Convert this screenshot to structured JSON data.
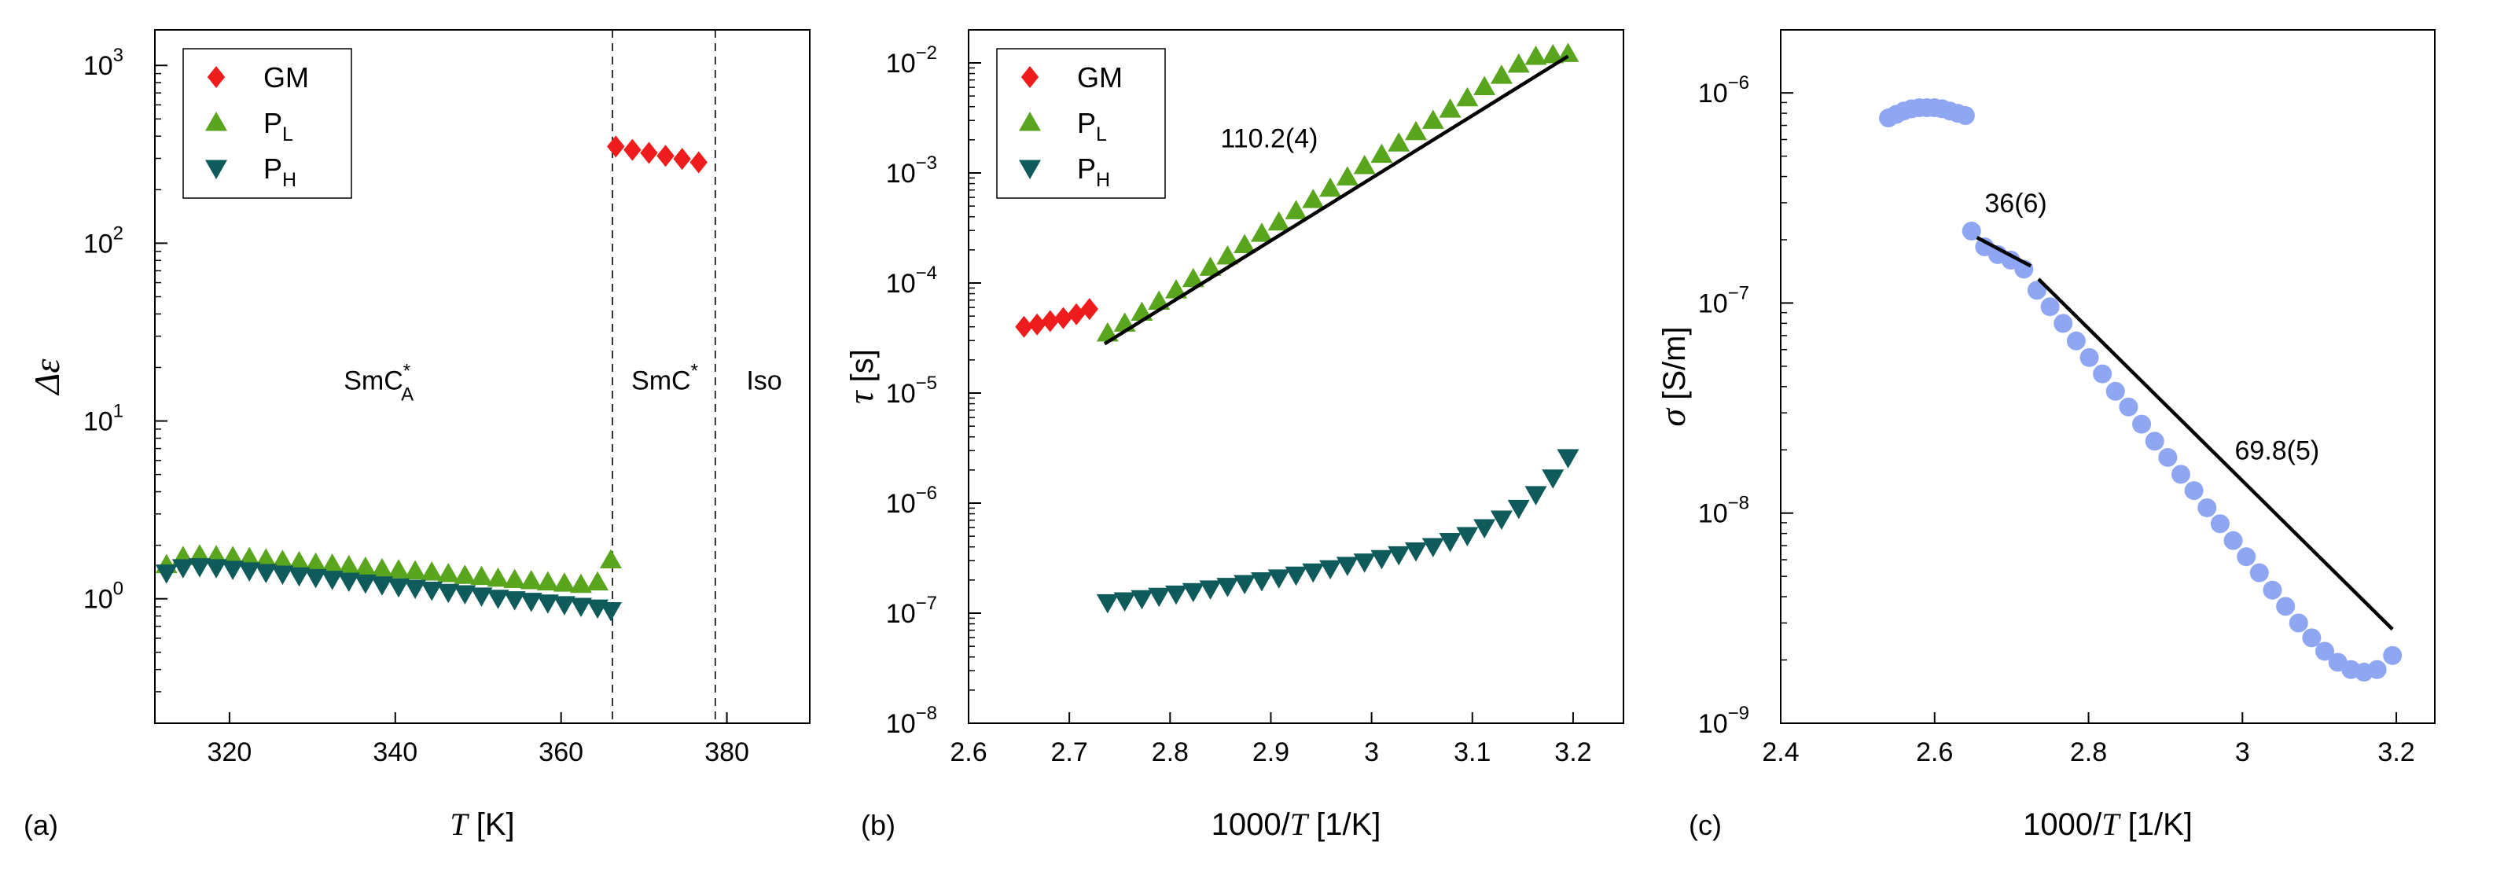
{
  "colors": {
    "GM": "#ee1c1c",
    "PL": "#5aa51e",
    "PH": "#0f5a5a",
    "sigma": "#8fa6f2",
    "fit": "#000000"
  },
  "legend": {
    "entries": [
      {
        "key": "GM",
        "text": "GM",
        "sub": ""
      },
      {
        "key": "PL",
        "text": "P",
        "sub": "L"
      },
      {
        "key": "PH",
        "text": "P",
        "sub": "H"
      }
    ]
  },
  "chart_data": [
    {
      "type": "scatter",
      "panel_label": "(a)",
      "xlabel": {
        "var": "T",
        "unit": " [K]"
      },
      "ylabel": "Δε",
      "xlim": [
        311,
        390
      ],
      "ylim_log10": [
        -0.7,
        3.2
      ],
      "xticks": [
        320,
        340,
        360,
        380
      ],
      "yticks": [
        {
          "base": "10",
          "exp": "0",
          "v": 0
        },
        {
          "base": "10",
          "exp": "1",
          "v": 1
        },
        {
          "base": "10",
          "exp": "2",
          "v": 2
        },
        {
          "base": "10",
          "exp": "3",
          "v": 3
        }
      ],
      "y_scale": "log",
      "legend_placement": "top-left",
      "vlines": [
        366.2,
        378.6
      ],
      "phase_labels": [
        {
          "text": "SmC",
          "sup": "*",
          "sub": "A",
          "x": 338,
          "y": 17
        },
        {
          "text": "SmC",
          "sup": "*",
          "sub": "",
          "x": 372.5,
          "y": 17
        },
        {
          "text": "Iso",
          "sup": "",
          "sub": "",
          "x": 384.5,
          "y": 17
        }
      ],
      "series": [
        {
          "name": "GM",
          "key": "GM",
          "marker": "diamond",
          "x": [
            366.6,
            368.6,
            370.6,
            372.6,
            374.6,
            376.6
          ],
          "y": [
            350,
            335,
            322,
            310,
            298,
            285
          ]
        },
        {
          "name": "PL",
          "key": "PL",
          "marker": "triangle-up",
          "x": [
            312.4,
            314.4,
            316.4,
            318.4,
            320.4,
            322.4,
            324.4,
            326.4,
            328.4,
            330.4,
            332.4,
            334.4,
            336.4,
            338.4,
            340.4,
            342.4,
            344.4,
            346.4,
            348.4,
            350.4,
            352.4,
            354.4,
            356.4,
            358.4,
            360.4,
            362.4,
            364.4,
            366.0
          ],
          "y": [
            1.55,
            1.72,
            1.76,
            1.74,
            1.72,
            1.7,
            1.67,
            1.64,
            1.61,
            1.58,
            1.56,
            1.53,
            1.5,
            1.47,
            1.45,
            1.43,
            1.41,
            1.38,
            1.35,
            1.33,
            1.3,
            1.28,
            1.26,
            1.24,
            1.22,
            1.2,
            1.24,
            1.65
          ]
        },
        {
          "name": "PH",
          "key": "PH",
          "marker": "triangle-down",
          "x": [
            312.4,
            314.4,
            316.4,
            318.4,
            320.4,
            322.4,
            324.4,
            326.4,
            328.4,
            330.4,
            332.4,
            334.4,
            336.4,
            338.4,
            340.4,
            342.4,
            344.4,
            346.4,
            348.4,
            350.4,
            352.4,
            354.4,
            356.4,
            358.4,
            360.4,
            362.4,
            364.4,
            366.0
          ],
          "y": [
            1.4,
            1.5,
            1.52,
            1.5,
            1.47,
            1.44,
            1.41,
            1.38,
            1.35,
            1.32,
            1.29,
            1.26,
            1.23,
            1.2,
            1.17,
            1.15,
            1.12,
            1.09,
            1.07,
            1.04,
            1.01,
            0.99,
            0.97,
            0.95,
            0.93,
            0.91,
            0.89,
            0.86
          ]
        }
      ]
    },
    {
      "type": "scatter",
      "panel_label": "(b)",
      "xlabel": {
        "var": "T",
        "pre": "1000/",
        "unit": " [1/K]"
      },
      "ylabel": {
        "var": "τ",
        "unit": " [s]"
      },
      "xlim": [
        2.6,
        3.25
      ],
      "ylim_log10": [
        -8,
        -1.7
      ],
      "xticks": [
        2.6,
        2.7,
        2.8,
        2.9,
        3,
        3.1,
        3.2
      ],
      "xtick_labels": [
        "2.6",
        "2.7",
        "2.8",
        "2.9",
        "3",
        "3.1",
        "3.2"
      ],
      "yticks": [
        {
          "base": "10",
          "exp": "−8",
          "v": -8
        },
        {
          "base": "10",
          "exp": "−7",
          "v": -7
        },
        {
          "base": "10",
          "exp": "−6",
          "v": -6
        },
        {
          "base": "10",
          "exp": "−5",
          "v": -5
        },
        {
          "base": "10",
          "exp": "−4",
          "v": -4
        },
        {
          "base": "10",
          "exp": "−3",
          "v": -3
        },
        {
          "base": "10",
          "exp": "−2",
          "v": -2
        }
      ],
      "y_scale": "log",
      "legend_placement": "top-left",
      "annotations": [
        {
          "text": "110.2(4)",
          "x": 2.85,
          "y": 0.0017
        }
      ],
      "fits": [
        {
          "x": [
            2.735,
            3.195
          ],
          "y": [
            2.8e-05,
            0.0115
          ]
        }
      ],
      "series": [
        {
          "name": "GM",
          "key": "GM",
          "marker": "diamond",
          "x": [
            2.655,
            2.668,
            2.681,
            2.694,
            2.707,
            2.72
          ],
          "y": [
            4e-05,
            4.2e-05,
            4.5e-05,
            4.8e-05,
            5.2e-05,
            5.8e-05
          ]
        },
        {
          "name": "PL",
          "key": "PL",
          "marker": "triangle-up",
          "x": [
            2.738,
            2.755,
            2.772,
            2.789,
            2.806,
            2.823,
            2.84,
            2.857,
            2.874,
            2.891,
            2.908,
            2.925,
            2.942,
            2.959,
            2.976,
            2.993,
            3.01,
            3.027,
            3.044,
            3.061,
            3.078,
            3.095,
            3.112,
            3.129,
            3.146,
            3.163,
            3.18,
            3.195
          ],
          "y": [
            3.5e-05,
            4.3e-05,
            5.4e-05,
            6.8e-05,
            8.6e-05,
            0.000109,
            0.000138,
            0.000175,
            0.000222,
            0.000281,
            0.000356,
            0.000451,
            0.000571,
            0.000723,
            0.000916,
            0.00116,
            0.00147,
            0.00186,
            0.00236,
            0.00299,
            0.00378,
            0.00479,
            0.00606,
            0.00767,
            0.0097,
            0.0114,
            0.0118,
            0.0121
          ]
        },
        {
          "name": "PH",
          "key": "PH",
          "marker": "triangle-down",
          "x": [
            2.738,
            2.755,
            2.772,
            2.789,
            2.806,
            2.823,
            2.84,
            2.857,
            2.874,
            2.891,
            2.908,
            2.925,
            2.942,
            2.959,
            2.976,
            2.993,
            3.01,
            3.027,
            3.044,
            3.061,
            3.078,
            3.095,
            3.112,
            3.129,
            3.146,
            3.163,
            3.18,
            3.195
          ],
          "y": [
            1.25e-07,
            1.3e-07,
            1.36e-07,
            1.43e-07,
            1.5e-07,
            1.58e-07,
            1.67e-07,
            1.76e-07,
            1.87e-07,
            1.98e-07,
            2.1e-07,
            2.23e-07,
            2.38e-07,
            2.55e-07,
            2.73e-07,
            2.93e-07,
            3.15e-07,
            3.41e-07,
            3.7e-07,
            4.05e-07,
            4.5e-07,
            5.1e-07,
            6e-07,
            7.2e-07,
            9e-07,
            1.2e-06,
            1.7e-06,
            2.6e-06
          ]
        }
      ]
    },
    {
      "type": "scatter",
      "panel_label": "(c)",
      "xlabel": {
        "var": "T",
        "pre": "1000/",
        "unit": " [1/K]"
      },
      "ylabel": {
        "var": "σ",
        "unit": " [S/m]"
      },
      "xlim": [
        2.4,
        3.25
      ],
      "ylim_log10": [
        -9,
        -5.7
      ],
      "xticks": [
        2.4,
        2.6,
        2.8,
        3,
        3.2
      ],
      "xtick_labels": [
        "2.4",
        "2.6",
        "2.8",
        "3",
        "3.2"
      ],
      "yticks": [
        {
          "base": "10",
          "exp": "−9",
          "v": -9
        },
        {
          "base": "10",
          "exp": "−8",
          "v": -8
        },
        {
          "base": "10",
          "exp": "−7",
          "v": -7
        },
        {
          "base": "10",
          "exp": "−6",
          "v": -6
        }
      ],
      "y_scale": "log",
      "annotations": [
        {
          "text": "36(6)",
          "x": 2.665,
          "y": 2.7e-07
        },
        {
          "text": "69.8(5)",
          "x": 2.99,
          "y": 1.8e-08
        }
      ],
      "fits": [
        {
          "x": [
            2.655,
            2.725
          ],
          "y": [
            2.05e-07,
            1.5e-07
          ]
        },
        {
          "x": [
            2.735,
            3.195
          ],
          "y": [
            1.3e-07,
            2.8e-09
          ]
        }
      ],
      "series": [
        {
          "name": "σ",
          "key": "sigma",
          "marker": "circle",
          "x": [
            2.54,
            2.55,
            2.56,
            2.57,
            2.58,
            2.59,
            2.6,
            2.61,
            2.62,
            2.63,
            2.64,
            2.648,
            2.665,
            2.682,
            2.699,
            2.716,
            2.733,
            2.75,
            2.767,
            2.784,
            2.801,
            2.818,
            2.835,
            2.852,
            2.869,
            2.886,
            2.903,
            2.92,
            2.937,
            2.954,
            2.971,
            2.988,
            3.005,
            3.022,
            3.039,
            3.056,
            3.073,
            3.09,
            3.107,
            3.124,
            3.141,
            3.158,
            3.175,
            3.195
          ],
          "y": [
            7.6e-07,
            7.9e-07,
            8.2e-07,
            8.4e-07,
            8.5e-07,
            8.5e-07,
            8.5e-07,
            8.4e-07,
            8.2e-07,
            8e-07,
            7.8e-07,
            2.2e-07,
            1.85e-07,
            1.7e-07,
            1.6e-07,
            1.45e-07,
            1.15e-07,
            9.6e-08,
            8e-08,
            6.6e-08,
            5.5e-08,
            4.6e-08,
            3.8e-08,
            3.2e-08,
            2.65e-08,
            2.2e-08,
            1.84e-08,
            1.53e-08,
            1.28e-08,
            1.06e-08,
            8.9e-09,
            7.4e-09,
            6.2e-09,
            5.2e-09,
            4.3e-09,
            3.6e-09,
            3e-09,
            2.55e-09,
            2.2e-09,
            1.95e-09,
            1.8e-09,
            1.75e-09,
            1.8e-09,
            2.1e-09
          ]
        }
      ]
    }
  ]
}
